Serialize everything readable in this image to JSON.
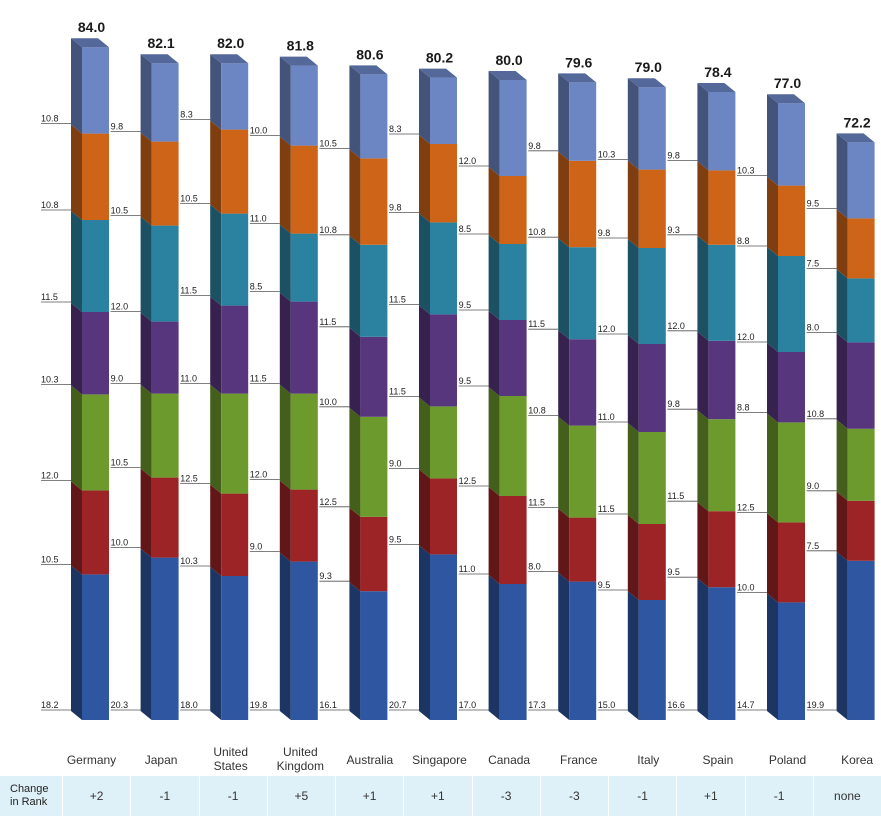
{
  "colors": [
    "#2f56a0",
    "#9c2426",
    "#6c9a2c",
    "#58367e",
    "#2b82a0",
    "#cd6418",
    "#6c86c4"
  ],
  "chart_data": {
    "type": "bar",
    "stacked": true,
    "categories": [
      "Germany",
      "Japan",
      "United States",
      "United Kingdom",
      "Australia",
      "Singapore",
      "Canada",
      "France",
      "Italy",
      "Spain",
      "Poland",
      "Korea"
    ],
    "category_lines": [
      [
        "Germany"
      ],
      [
        "Japan"
      ],
      [
        "United",
        "States"
      ],
      [
        "United",
        "Kingdom"
      ],
      [
        "Australia"
      ],
      [
        "Singapore"
      ],
      [
        "Canada"
      ],
      [
        "France"
      ],
      [
        "Italy"
      ],
      [
        "Spain"
      ],
      [
        "Poland"
      ],
      [
        "Korea"
      ]
    ],
    "totals": [
      "84.0",
      "82.1",
      "82.0",
      "81.8",
      "80.6",
      "80.2",
      "80.0",
      "79.6",
      "79.0",
      "78.4",
      "77.0",
      "72.2"
    ],
    "series": [
      {
        "values": [
          18.2,
          20.3,
          18.0,
          19.8,
          16.1,
          20.7,
          17.0,
          17.3,
          15.0,
          16.6,
          14.7,
          19.9
        ]
      },
      {
        "values": [
          10.5,
          10.0,
          10.3,
          9.0,
          9.3,
          9.5,
          11.0,
          8.0,
          9.5,
          9.5,
          10.0,
          7.5
        ]
      },
      {
        "values": [
          12.0,
          10.5,
          12.5,
          12.0,
          12.5,
          9.0,
          12.5,
          11.5,
          11.5,
          11.5,
          12.5,
          9.0
        ]
      },
      {
        "values": [
          10.3,
          9.0,
          11.0,
          11.5,
          10.0,
          11.5,
          9.5,
          10.8,
          11.0,
          9.8,
          8.8,
          10.8
        ]
      },
      {
        "values": [
          11.5,
          12.0,
          11.5,
          8.5,
          11.5,
          11.5,
          9.5,
          11.5,
          12.0,
          12.0,
          12.0,
          8.0
        ]
      },
      {
        "values": [
          10.8,
          10.5,
          10.5,
          11.0,
          10.8,
          9.8,
          8.5,
          10.8,
          9.8,
          9.3,
          8.8,
          7.5
        ]
      },
      {
        "values": [
          10.8,
          9.8,
          8.3,
          10.0,
          10.5,
          8.3,
          12.0,
          9.8,
          10.3,
          9.8,
          10.3,
          9.5
        ]
      }
    ]
  },
  "rank_row": {
    "header_line1": "Change",
    "header_line2": "in Rank",
    "values": [
      "+2",
      "-1",
      "-1",
      "+5",
      "+1",
      "+1",
      "-3",
      "-3",
      "-1",
      "+1",
      "-1",
      "none"
    ]
  }
}
